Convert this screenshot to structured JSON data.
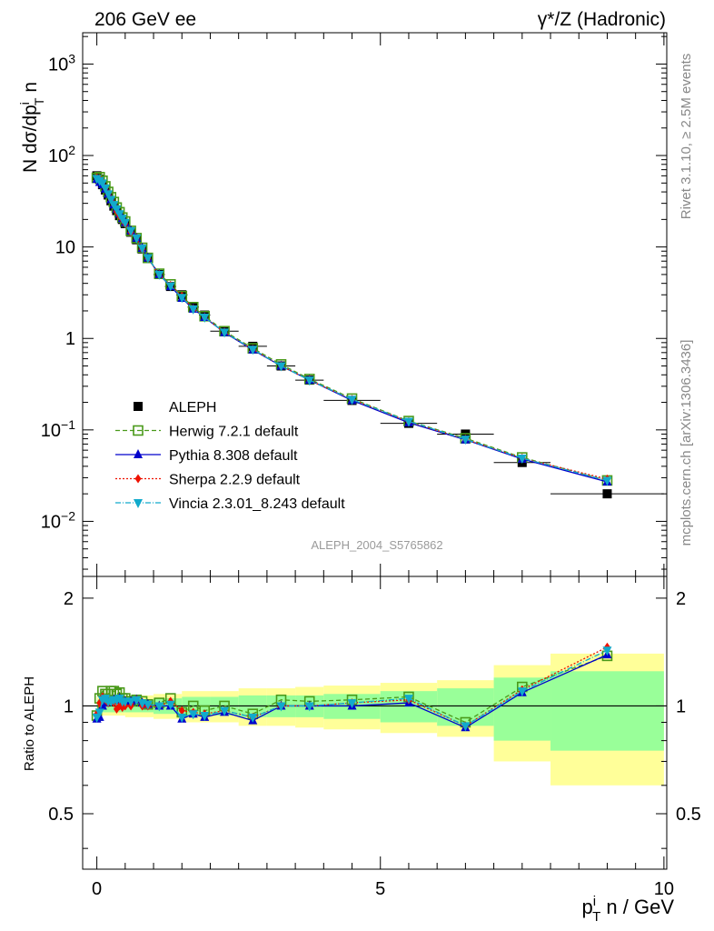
{
  "header": {
    "left_title": "206 GeV ee",
    "right_title": "γ*/Z (Hadronic)"
  },
  "side_labels": {
    "rivet": "Rivet 3.1.10, ≥ 2.5M events",
    "mcplots": "mcplots.cern.ch [arXiv:1306.3436]"
  },
  "watermark": "ALEPH_2004_S5765862",
  "colors": {
    "data": "#000000",
    "herwig": "#4a9a1a",
    "pythia": "#0000cc",
    "sherpa": "#ee1100",
    "vincia": "#11aacc",
    "band_inner": "#99ff99",
    "band_outer": "#ffff99"
  },
  "chart_data": [
    {
      "type": "scatter",
      "panel": "main",
      "ylabel": "N dσ/dp_T^i n",
      "yscale": "log",
      "xlim": [
        -0.25,
        10.05
      ],
      "ylim": [
        0.0025,
        2200
      ],
      "y_tick_labels": [
        "10^-2",
        "10^-1",
        "1",
        "10",
        "10^2",
        "10^3"
      ],
      "legend_position": "lower-left",
      "x": [
        0.0,
        0.05,
        0.1,
        0.15,
        0.2,
        0.25,
        0.3,
        0.35,
        0.4,
        0.45,
        0.5,
        0.6,
        0.7,
        0.8,
        0.9,
        1.1,
        1.3,
        1.5,
        1.7,
        1.9,
        2.25,
        2.75,
        3.25,
        3.75,
        4.5,
        5.5,
        6.5,
        7.5,
        9.0
      ],
      "x_halfwidth": [
        0.025,
        0.025,
        0.025,
        0.025,
        0.025,
        0.025,
        0.025,
        0.025,
        0.025,
        0.025,
        0.05,
        0.05,
        0.05,
        0.05,
        0.05,
        0.1,
        0.1,
        0.1,
        0.1,
        0.1,
        0.25,
        0.25,
        0.25,
        0.25,
        0.5,
        0.5,
        0.5,
        0.5,
        1.0
      ],
      "series": [
        {
          "name": "ALEPH",
          "key": "data",
          "marker": "square-filled",
          "y": [
            60,
            55,
            48,
            42,
            37,
            32,
            28,
            25,
            22,
            20,
            18,
            14.5,
            12,
            9.5,
            7.5,
            5.0,
            3.7,
            3.0,
            2.2,
            1.8,
            1.2,
            0.82,
            0.5,
            0.35,
            0.21,
            0.118,
            0.09,
            0.044,
            0.02
          ]
        },
        {
          "name": "Herwig 7.2.1 default",
          "key": "herwig",
          "marker": "square-open",
          "dash": "5,3",
          "y": [
            57,
            58,
            53,
            46,
            40,
            35,
            31,
            27,
            24,
            21,
            19,
            15,
            12.5,
            9.8,
            7.6,
            5.1,
            3.9,
            2.9,
            2.2,
            1.75,
            1.2,
            0.78,
            0.52,
            0.36,
            0.22,
            0.125,
            0.081,
            0.05,
            0.028
          ]
        },
        {
          "name": "Pythia 8.308 default",
          "key": "pythia",
          "marker": "triangle-up",
          "dash": "",
          "y": [
            55,
            51,
            48,
            43,
            38,
            33,
            29,
            26,
            23,
            20.5,
            18.5,
            15,
            12.5,
            9.7,
            7.6,
            5.0,
            3.7,
            2.75,
            2.1,
            1.7,
            1.16,
            0.75,
            0.5,
            0.35,
            0.21,
            0.12,
            0.078,
            0.048,
            0.027
          ]
        },
        {
          "name": "Sherpa 2.2.9 default",
          "key": "sherpa",
          "marker": "diamond",
          "dash": "2,2",
          "y": [
            57,
            56,
            51,
            44,
            38,
            33,
            29,
            24.5,
            22,
            20,
            18,
            14.5,
            12.5,
            9.5,
            7.5,
            5.0,
            3.8,
            2.9,
            2.1,
            1.7,
            1.17,
            0.76,
            0.5,
            0.35,
            0.215,
            0.123,
            0.079,
            0.049,
            0.029
          ]
        },
        {
          "name": "Vincia 2.3.01_8.243 default",
          "key": "vincia",
          "marker": "triangle-down",
          "dash": "6,2,1,2",
          "y": [
            56,
            53,
            50,
            44,
            38,
            33,
            29,
            26,
            23,
            20.5,
            18.5,
            15,
            12.5,
            9.7,
            7.6,
            5.0,
            3.75,
            2.8,
            2.1,
            1.7,
            1.17,
            0.76,
            0.5,
            0.35,
            0.215,
            0.124,
            0.079,
            0.049,
            0.028
          ]
        }
      ]
    },
    {
      "type": "line",
      "panel": "ratio",
      "xlabel": "p_T^i n / GeV",
      "ylabel": "Ratio to ALEPH",
      "xlim": [
        -0.25,
        10.05
      ],
      "ylim": [
        0.35,
        2.3
      ],
      "x_tick_labels": [
        "0",
        "5",
        "10"
      ],
      "y_tick_labels": [
        "0.5",
        "1",
        "2"
      ],
      "reference_line": 1,
      "bands": {
        "x_edges": [
          0.0,
          0.5,
          1.0,
          1.5,
          2.0,
          2.5,
          3.0,
          3.5,
          4.0,
          5.0,
          6.0,
          7.0,
          8.0,
          10.0
        ],
        "inner": [
          0.04,
          0.04,
          0.05,
          0.06,
          0.06,
          0.07,
          0.07,
          0.07,
          0.08,
          0.1,
          0.12,
          0.2,
          0.25
        ],
        "outer": [
          0.06,
          0.07,
          0.08,
          0.1,
          0.1,
          0.12,
          0.12,
          0.13,
          0.14,
          0.16,
          0.18,
          0.3,
          0.4
        ]
      },
      "series": [
        {
          "name": "Herwig 7.2.1 default",
          "key": "herwig",
          "y": [
            0.94,
            1.05,
            1.1,
            1.08,
            1.08,
            1.1,
            1.1,
            1.08,
            1.09,
            1.05,
            1.05,
            1.03,
            1.04,
            1.03,
            1.01,
            1.02,
            1.05,
            0.96,
            1.0,
            0.97,
            1.0,
            0.95,
            1.04,
            1.03,
            1.04,
            1.06,
            0.9,
            1.13,
            1.38
          ]
        },
        {
          "name": "Pythia 8.308 default",
          "key": "pythia",
          "y": [
            0.92,
            0.93,
            1.0,
            1.02,
            1.03,
            1.03,
            1.04,
            1.04,
            1.05,
            1.03,
            1.03,
            1.03,
            1.04,
            1.02,
            1.01,
            1.0,
            1.0,
            0.92,
            0.95,
            0.93,
            0.96,
            0.91,
            1.0,
            1.0,
            1.0,
            1.02,
            0.87,
            1.09,
            1.39
          ]
        },
        {
          "name": "Sherpa 2.2.9 default",
          "key": "sherpa",
          "y": [
            0.95,
            1.02,
            1.06,
            1.04,
            1.02,
            1.03,
            1.02,
            0.98,
            1.0,
            0.99,
            1.0,
            1.0,
            1.04,
            1.0,
            1.0,
            1.0,
            1.03,
            0.97,
            0.96,
            0.95,
            0.97,
            0.93,
            1.0,
            1.0,
            1.02,
            1.04,
            0.88,
            1.11,
            1.46
          ]
        },
        {
          "name": "Vincia 2.3.01_8.243 default",
          "key": "vincia",
          "y": [
            0.93,
            0.96,
            1.04,
            1.05,
            1.03,
            1.03,
            1.04,
            1.04,
            1.05,
            1.03,
            1.03,
            1.03,
            1.04,
            1.02,
            1.01,
            1.0,
            1.01,
            0.93,
            0.95,
            0.94,
            0.97,
            0.93,
            1.0,
            1.0,
            1.02,
            1.05,
            0.88,
            1.1,
            1.43
          ]
        }
      ]
    }
  ]
}
